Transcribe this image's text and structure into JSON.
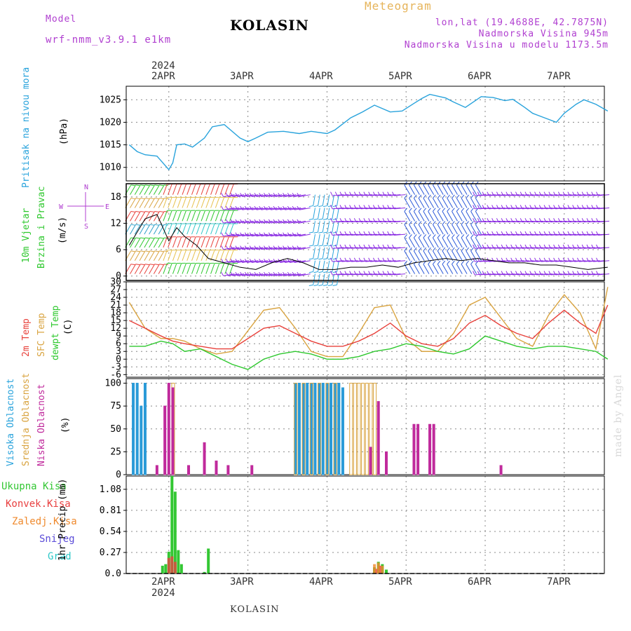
{
  "header": {
    "model_label": "Model",
    "model_name": "wrf-nmm_v3.9.1 e1km",
    "title": "KOLASIN",
    "meteogram_label": "Meteogram",
    "location": "lon,lat (19.4688E, 42.7875N)",
    "elevation": "Nadmorska Visina 945m",
    "model_elevation": "Nadmorska Visina u modelu 1173.5m",
    "year": "2024",
    "footer_station": "KOLASIN",
    "watermark": "made by Angel"
  },
  "x_axis": {
    "day_labels": [
      "2APR",
      "3APR",
      "4APR",
      "5APR",
      "6APR",
      "7APR"
    ],
    "bottom_year": "2024"
  },
  "colors": {
    "pressure": "#29a3dc",
    "temp2m": "#e8413b",
    "sfc": "#d9a441",
    "dew": "#2ec82e",
    "high": "#2a9bd8",
    "mid": "#d9a441",
    "low": "#c02a9c",
    "rain": "#33c733",
    "conv": "#e84040",
    "frozen": "#ef8a2e",
    "snow": "#5a4bd8",
    "graupel": "#2ec8c8"
  },
  "panels": {
    "pressure": {
      "labels": [
        "Pritisak na nivou mora",
        "(hPa)"
      ]
    },
    "wind": {
      "labels": [
        "10m Vjetar",
        "Brzina i Pravac",
        "(m/s)"
      ],
      "compass": [
        "N",
        "E",
        "S",
        "W"
      ]
    },
    "temp": {
      "labels": [
        "2m Temp",
        "SFC Temp",
        "dewpt Temp",
        "(C)"
      ]
    },
    "cloud": {
      "labels": [
        "Visoka Oblacnost",
        "Srednja Oblacnost",
        "Niska Oblacnost",
        "(%)"
      ]
    },
    "precip": {
      "legend": [
        "Ukupna Kisa",
        "Konvek.Kisa",
        "Zaledj.Kisa",
        "Snijeg",
        "Grad"
      ],
      "ylabel": "1hr Precip (mm)"
    }
  },
  "chart_data": [
    {
      "type": "line",
      "title": "Pritisak na nivou mora",
      "ylabel": "(hPa)",
      "ylim": [
        1007,
        1028
      ],
      "yticks": [
        1010,
        1015,
        1020,
        1025
      ],
      "x_unit": "days since 1APR 00UTC",
      "series": [
        {
          "name": "Pritisak na nivou mora",
          "x": [
            0.5,
            0.6,
            0.7,
            0.85,
            1.0,
            1.05,
            1.1,
            1.2,
            1.3,
            1.45,
            1.55,
            1.7,
            1.9,
            2.0,
            2.1,
            2.25,
            2.45,
            2.65,
            2.8,
            3.0,
            3.1,
            3.3,
            3.45,
            3.6,
            3.8,
            3.95,
            4.1,
            4.2,
            4.3,
            4.5,
            4.6,
            4.75,
            4.95,
            5.1,
            5.25,
            5.35,
            5.5,
            5.6,
            5.75,
            5.9,
            6.0,
            6.15,
            6.25,
            6.4,
            6.55
          ],
          "values": [
            1015,
            1013.5,
            1012.8,
            1012.5,
            1009.5,
            1011,
            1015,
            1015.2,
            1014.5,
            1016.5,
            1019,
            1019.5,
            1016.5,
            1015.7,
            1016.5,
            1017.8,
            1018,
            1017.5,
            1018,
            1017.5,
            1018.3,
            1021,
            1022.3,
            1023.8,
            1022.3,
            1022.5,
            1024.2,
            1025.3,
            1026.2,
            1025.4,
            1024.5,
            1023.3,
            1025.7,
            1025.5,
            1024.8,
            1025.1,
            1023.3,
            1022,
            1021,
            1020,
            1022,
            1024,
            1025,
            1024,
            1022.5
          ]
        }
      ]
    },
    {
      "type": "line",
      "title": "10m Vjetar Brzina i Pravac",
      "ylabel": "(m/s)",
      "ylim": [
        -1,
        21
      ],
      "yticks": [
        0,
        6,
        12,
        18
      ],
      "series": [
        {
          "name": "Brzina",
          "x": [
            0.5,
            0.6,
            0.7,
            0.85,
            1.0,
            1.1,
            1.2,
            1.35,
            1.5,
            1.7,
            1.9,
            2.1,
            2.3,
            2.5,
            2.7,
            2.9,
            3.1,
            3.3,
            3.5,
            3.7,
            3.9,
            4.1,
            4.3,
            4.5,
            4.7,
            4.9,
            5.1,
            5.3,
            5.5,
            5.7,
            5.9,
            6.1,
            6.3,
            6.55
          ],
          "values": [
            7,
            10,
            13,
            14,
            8,
            11,
            9,
            7,
            4,
            3,
            2,
            1.5,
            3,
            4,
            3,
            1.5,
            1.5,
            2,
            2,
            2.5,
            2,
            3,
            3.5,
            4,
            3.5,
            4,
            3.5,
            3,
            3,
            2.5,
            2.5,
            2,
            1.5,
            2
          ]
        }
      ]
    },
    {
      "type": "line",
      "title": "2m Temp / SFC Temp / dewpt Temp",
      "ylabel": "(C)",
      "ylim": [
        -7,
        30
      ],
      "yticks": [
        -6,
        -3,
        0,
        3,
        6,
        9,
        12,
        15,
        18,
        21,
        24,
        27,
        30
      ],
      "series": [
        {
          "name": "2m Temp",
          "x": [
            0.5,
            0.7,
            0.9,
            1.05,
            1.2,
            1.4,
            1.6,
            1.8,
            2.0,
            2.2,
            2.4,
            2.6,
            2.8,
            3.0,
            3.2,
            3.4,
            3.6,
            3.8,
            4.0,
            4.2,
            4.4,
            4.6,
            4.8,
            5.0,
            5.2,
            5.4,
            5.6,
            5.8,
            6.0,
            6.2,
            6.4,
            6.55
          ],
          "values": [
            15,
            12,
            9,
            7,
            6,
            5,
            4,
            4,
            8,
            12,
            13,
            10,
            7,
            5,
            5,
            7,
            10,
            14,
            9,
            6,
            5,
            8,
            14,
            17,
            13,
            10,
            8,
            14,
            19,
            14,
            10,
            21
          ]
        },
        {
          "name": "SFC Temp",
          "x": [
            0.5,
            0.7,
            0.9,
            1.05,
            1.2,
            1.4,
            1.6,
            1.8,
            2.0,
            2.2,
            2.4,
            2.6,
            2.8,
            3.0,
            3.2,
            3.4,
            3.6,
            3.8,
            4.0,
            4.2,
            4.4,
            4.6,
            4.8,
            5.0,
            5.2,
            5.4,
            5.6,
            5.8,
            6.0,
            6.2,
            6.4,
            6.55
          ],
          "values": [
            22,
            12,
            8,
            8,
            7,
            4,
            2,
            3,
            11,
            19,
            20,
            12,
            3,
            1,
            1,
            10,
            20,
            21,
            8,
            3,
            3,
            10,
            21,
            24,
            16,
            8,
            5,
            17,
            25,
            18,
            4,
            28
          ]
        },
        {
          "name": "dewpt Temp",
          "x": [
            0.5,
            0.7,
            0.9,
            1.05,
            1.2,
            1.4,
            1.6,
            1.8,
            2.0,
            2.2,
            2.4,
            2.6,
            2.8,
            3.0,
            3.2,
            3.4,
            3.6,
            3.8,
            4.0,
            4.2,
            4.4,
            4.6,
            4.8,
            5.0,
            5.2,
            5.4,
            5.6,
            5.8,
            6.0,
            6.2,
            6.4,
            6.55
          ],
          "values": [
            5,
            5,
            7,
            6,
            3,
            4,
            1,
            -2,
            -4,
            0,
            2,
            3,
            2,
            0,
            0,
            1,
            3,
            4,
            6,
            5,
            3,
            2,
            4,
            9,
            7,
            5,
            4,
            5,
            5,
            4,
            3,
            0
          ]
        }
      ]
    },
    {
      "type": "bar",
      "title": "Oblacnost",
      "ylabel": "(%)",
      "ylim": [
        0,
        105
      ],
      "yticks": [
        0,
        25,
        50,
        75,
        100
      ],
      "series": [
        {
          "name": "Visoka Oblacnost",
          "x": [
            0.55,
            0.6,
            0.65,
            0.7,
            2.6,
            2.65,
            2.7,
            2.75,
            2.8,
            2.85,
            2.9,
            2.95,
            3.0,
            3.05,
            3.1,
            3.15,
            3.2
          ],
          "values": [
            100,
            100,
            75,
            100,
            100,
            100,
            100,
            100,
            100,
            100,
            100,
            100,
            100,
            100,
            100,
            100,
            95
          ]
        },
        {
          "name": "Srednja Oblacnost",
          "x": [
            1.05,
            2.6,
            2.7,
            2.8,
            2.9,
            3.0,
            3.1,
            3.3,
            3.35,
            3.4,
            3.45,
            3.5,
            3.55,
            3.6
          ],
          "values": [
            100,
            100,
            100,
            100,
            100,
            100,
            100,
            100,
            100,
            100,
            100,
            100,
            100,
            100
          ]
        },
        {
          "name": "Niska Oblacnost",
          "x": [
            0.85,
            0.95,
            1.0,
            1.05,
            1.25,
            1.45,
            1.6,
            1.75,
            2.05,
            3.55,
            3.65,
            3.75,
            4.1,
            4.15,
            4.3,
            4.35,
            5.2
          ],
          "values": [
            10,
            75,
            100,
            95,
            10,
            35,
            15,
            10,
            10,
            30,
            80,
            25,
            55,
            55,
            55,
            55,
            10
          ]
        }
      ]
    },
    {
      "type": "bar",
      "title": "1hr Precip",
      "ylabel": "1hr Precip (mm)",
      "ylim": [
        0,
        1.25
      ],
      "yticks": [
        0,
        0.27,
        0.54,
        0.81,
        1.08
      ],
      "series": [
        {
          "name": "Ukupna Kisa",
          "x": [
            0.92,
            0.96,
            1.0,
            1.04,
            1.08,
            1.12,
            1.16,
            1.45,
            1.5,
            3.6,
            3.65,
            3.7,
            3.75
          ],
          "values": [
            0.1,
            0.12,
            0.28,
            1.25,
            1.05,
            0.3,
            0.12,
            0.02,
            0.32,
            0.08,
            0.15,
            0.12,
            0.05
          ]
        },
        {
          "name": "Konvek.Kisa",
          "x": [
            1.0,
            1.04,
            1.08,
            3.62,
            3.67
          ],
          "values": [
            0.2,
            0.22,
            0.15,
            0.06,
            0.1
          ]
        },
        {
          "name": "Zaledj.Kisa",
          "x": [
            3.6,
            3.65,
            3.7
          ],
          "values": [
            0.12,
            0.14,
            0.1
          ]
        }
      ]
    }
  ]
}
